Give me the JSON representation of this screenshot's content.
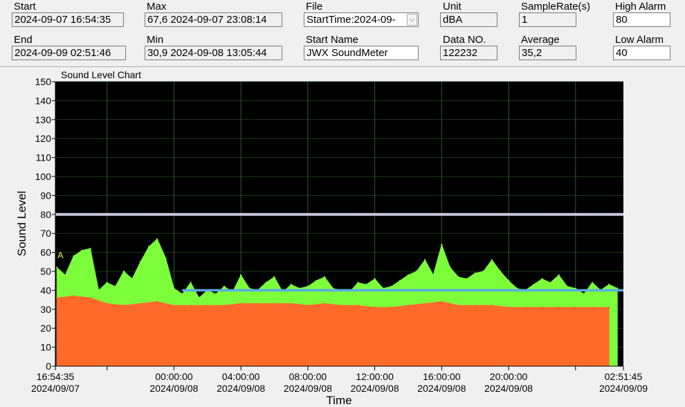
{
  "header": {
    "start": {
      "label": "Start",
      "value": "2024-09-07 16:54:35"
    },
    "end": {
      "label": "End",
      "value": "2024-09-09  02:51:46"
    },
    "max": {
      "label": "Max",
      "value": "67,6 2024-09-07  23:08:14"
    },
    "min": {
      "label": "Min",
      "value": "30,9 2024-09-08  13:05:44"
    },
    "file": {
      "label": "File",
      "value": "StartTime:2024-09-"
    },
    "start_name": {
      "label": "Start Name",
      "value": "JWX SoundMeter"
    },
    "unit": {
      "label": "Unit",
      "value": "dBA"
    },
    "data_no": {
      "label": "Data NO.",
      "value": "122232"
    },
    "sample_rate": {
      "label": "SampleRate(s)",
      "value": "1"
    },
    "average": {
      "label": "Average",
      "value": "35,2"
    },
    "high_alarm": {
      "label": "High Alarm",
      "value": "80"
    },
    "low_alarm": {
      "label": "Low Alarm",
      "value": "40"
    }
  },
  "chart_data": {
    "type": "area",
    "title": "Sound Level Chart",
    "xlabel": "Time",
    "ylabel": "Sound Level",
    "ylim": [
      0,
      150
    ],
    "yticks": [
      0,
      10,
      20,
      30,
      40,
      50,
      60,
      70,
      80,
      90,
      100,
      110,
      120,
      130,
      140,
      150
    ],
    "xlim": [
      "2024-09-07 16:54:35",
      "2024-09-09 02:51:45"
    ],
    "xticks": [
      {
        "t": "2024-09-07 16:54:35",
        "time": "16:54:35",
        "date": "2024/09/07"
      },
      {
        "t": "2024-09-07 20:00:00",
        "time": "",
        "date": ""
      },
      {
        "t": "2024-09-08 00:00:00",
        "time": "00:00:00",
        "date": "2024/09/08"
      },
      {
        "t": "2024-09-08 04:00:00",
        "time": "04:00:00",
        "date": "2024/09/08"
      },
      {
        "t": "2024-09-08 08:00:00",
        "time": "08:00:00",
        "date": "2024/09/08"
      },
      {
        "t": "2024-09-08 12:00:00",
        "time": "12:00:00",
        "date": "2024/09/08"
      },
      {
        "t": "2024-09-08 16:00:00",
        "time": "16:00:00",
        "date": "2024/09/08"
      },
      {
        "t": "2024-09-08 20:00:00",
        "time": "20:00:00",
        "date": "2024/09/08"
      },
      {
        "t": "2024-09-09 00:00:00",
        "time": "",
        "date": ""
      },
      {
        "t": "2024-09-09 02:51:45",
        "time": "02:51:45",
        "date": "2024/09/09"
      }
    ],
    "grid": true,
    "background": "#000000",
    "high_alarm": 80,
    "low_alarm": 40,
    "high_alarm_color": "#c8c8dc",
    "low_alarm_color": "#5aa9e6",
    "marker_label": "A",
    "series": [
      {
        "color": "#7cff3a",
        "x": [
          "2024-09-07 17:00",
          "2024-09-07 17:30",
          "2024-09-07 18:00",
          "2024-09-07 18:30",
          "2024-09-07 19:00",
          "2024-09-07 19:30",
          "2024-09-07 20:00",
          "2024-09-07 20:30",
          "2024-09-07 21:00",
          "2024-09-07 21:30",
          "2024-09-07 22:00",
          "2024-09-07 22:30",
          "2024-09-07 23:00",
          "2024-09-07 23:30",
          "2024-09-08 00:00",
          "2024-09-08 00:30",
          "2024-09-08 01:00",
          "2024-09-08 01:30",
          "2024-09-08 02:00",
          "2024-09-08 02:30",
          "2024-09-08 03:00",
          "2024-09-08 03:30",
          "2024-09-08 04:00",
          "2024-09-08 04:30",
          "2024-09-08 05:00",
          "2024-09-08 05:30",
          "2024-09-08 06:00",
          "2024-09-08 06:30",
          "2024-09-08 07:00",
          "2024-09-08 07:30",
          "2024-09-08 08:00",
          "2024-09-08 08:30",
          "2024-09-08 09:00",
          "2024-09-08 09:30",
          "2024-09-08 10:00",
          "2024-09-08 10:30",
          "2024-09-08 11:00",
          "2024-09-08 11:30",
          "2024-09-08 12:00",
          "2024-09-08 12:30",
          "2024-09-08 13:00",
          "2024-09-08 13:30",
          "2024-09-08 14:00",
          "2024-09-08 14:30",
          "2024-09-08 15:00",
          "2024-09-08 15:30",
          "2024-09-08 16:00",
          "2024-09-08 16:30",
          "2024-09-08 17:00",
          "2024-09-08 17:30",
          "2024-09-08 18:00",
          "2024-09-08 18:30",
          "2024-09-08 19:00",
          "2024-09-08 19:30",
          "2024-09-08 20:00",
          "2024-09-08 20:30",
          "2024-09-08 21:00",
          "2024-09-08 21:30",
          "2024-09-08 22:00",
          "2024-09-08 22:30",
          "2024-09-08 23:00",
          "2024-09-08 23:30",
          "2024-09-09 00:00",
          "2024-09-09 00:30",
          "2024-09-09 01:00",
          "2024-09-09 01:30",
          "2024-09-09 02:00",
          "2024-09-09 02:30"
        ],
        "values": [
          52,
          48,
          58,
          61,
          62,
          40,
          44,
          42,
          50,
          46,
          55,
          63,
          67,
          57,
          41,
          38,
          44,
          36,
          40,
          38,
          42,
          39,
          48,
          41,
          40,
          44,
          47,
          39,
          43,
          41,
          42,
          45,
          47,
          41,
          40,
          39,
          44,
          43,
          46,
          41,
          42,
          45,
          48,
          50,
          56,
          48,
          64,
          52,
          47,
          46,
          49,
          50,
          56,
          50,
          45,
          41,
          40,
          43,
          46,
          44,
          48,
          42,
          41,
          38,
          44,
          40,
          43,
          41
        ]
      },
      {
        "color": "#ff6a2a",
        "x": [
          "2024-09-07 17:00",
          "2024-09-07 18:00",
          "2024-09-07 19:00",
          "2024-09-07 20:00",
          "2024-09-07 21:00",
          "2024-09-07 22:00",
          "2024-09-07 23:00",
          "2024-09-08 00:00",
          "2024-09-08 01:00",
          "2024-09-08 02:00",
          "2024-09-08 03:00",
          "2024-09-08 04:00",
          "2024-09-08 05:00",
          "2024-09-08 06:00",
          "2024-09-08 07:00",
          "2024-09-08 08:00",
          "2024-09-08 09:00",
          "2024-09-08 10:00",
          "2024-09-08 11:00",
          "2024-09-08 12:00",
          "2024-09-08 13:00",
          "2024-09-08 14:00",
          "2024-09-08 15:00",
          "2024-09-08 16:00",
          "2024-09-08 17:00",
          "2024-09-08 18:00",
          "2024-09-08 19:00",
          "2024-09-08 20:00",
          "2024-09-08 21:00",
          "2024-09-08 22:00",
          "2024-09-08 23:00",
          "2024-09-09 00:00",
          "2024-09-09 01:00",
          "2024-09-09 02:00"
        ],
        "values": [
          36,
          37,
          36,
          33,
          32,
          33,
          34,
          32,
          32,
          32,
          32,
          33,
          33,
          33,
          33,
          32,
          33,
          32,
          32,
          31,
          31,
          32,
          33,
          34,
          32,
          32,
          32,
          31,
          31,
          31,
          31,
          31,
          31,
          31
        ]
      }
    ]
  }
}
